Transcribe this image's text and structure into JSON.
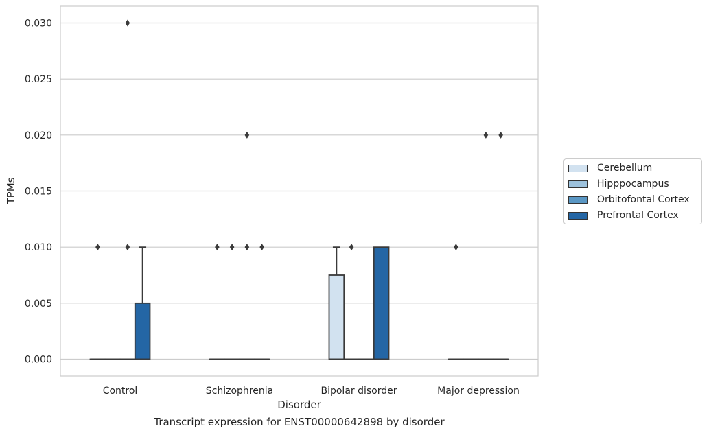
{
  "chart_data": {
    "type": "box",
    "title": "",
    "caption": "Transcript expression for ENST00000642898 by disorder",
    "xlabel": "Disorder",
    "ylabel": "TPMs",
    "ylim": [
      -0.0015,
      0.0315
    ],
    "yticks": [
      "0.000",
      "0.005",
      "0.010",
      "0.015",
      "0.020",
      "0.025",
      "0.030"
    ],
    "grid": "horizontal",
    "legend_position": "right",
    "categories": [
      "Control",
      "Schizophrenia",
      "Bipolar disorder",
      "Major depression"
    ],
    "series": [
      {
        "name": "Cerebellum",
        "color": "#d2e2f0",
        "boxes": [
          {
            "q1": 0,
            "median": 0,
            "q3": 0,
            "whisker_low": 0,
            "whisker_high": 0,
            "outliers": [
              0.01
            ]
          },
          {
            "q1": 0,
            "median": 0,
            "q3": 0,
            "whisker_low": 0,
            "whisker_high": 0,
            "outliers": [
              0.01
            ]
          },
          {
            "q1": 0,
            "median": 0,
            "q3": 0.0075,
            "whisker_low": 0,
            "whisker_high": 0.01,
            "outliers": []
          },
          {
            "q1": 0,
            "median": 0,
            "q3": 0,
            "whisker_low": 0,
            "whisker_high": 0,
            "outliers": [
              0.01
            ]
          }
        ]
      },
      {
        "name": "Hipppocampus",
        "color": "#9dc2dd",
        "boxes": [
          {
            "q1": 0,
            "median": 0,
            "q3": 0,
            "whisker_low": 0,
            "whisker_high": 0,
            "outliers": []
          },
          {
            "q1": 0,
            "median": 0,
            "q3": 0,
            "whisker_low": 0,
            "whisker_high": 0,
            "outliers": [
              0.01
            ]
          },
          {
            "q1": 0,
            "median": 0,
            "q3": 0,
            "whisker_low": 0,
            "whisker_high": 0,
            "outliers": [
              0.01
            ]
          },
          {
            "q1": 0,
            "median": 0,
            "q3": 0,
            "whisker_low": 0,
            "whisker_high": 0,
            "outliers": []
          }
        ]
      },
      {
        "name": "Orbitofontal Cortex",
        "color": "#5a97c4",
        "boxes": [
          {
            "q1": 0,
            "median": 0,
            "q3": 0,
            "whisker_low": 0,
            "whisker_high": 0,
            "outliers": [
              0.01,
              0.03
            ]
          },
          {
            "q1": 0,
            "median": 0,
            "q3": 0,
            "whisker_low": 0,
            "whisker_high": 0,
            "outliers": [
              0.01,
              0.02
            ]
          },
          {
            "q1": 0,
            "median": 0,
            "q3": 0,
            "whisker_low": 0,
            "whisker_high": 0,
            "outliers": []
          },
          {
            "q1": 0,
            "median": 0,
            "q3": 0,
            "whisker_low": 0,
            "whisker_high": 0,
            "outliers": [
              0.02
            ]
          }
        ]
      },
      {
        "name": "Prefrontal Cortex",
        "color": "#2466a5",
        "boxes": [
          {
            "q1": 0,
            "median": 0,
            "q3": 0.005,
            "whisker_low": 0,
            "whisker_high": 0.01,
            "outliers": []
          },
          {
            "q1": 0,
            "median": 0,
            "q3": 0,
            "whisker_low": 0,
            "whisker_high": 0,
            "outliers": [
              0.01
            ]
          },
          {
            "q1": 0,
            "median": 0,
            "q3": 0.01,
            "whisker_low": 0,
            "whisker_high": 0.01,
            "outliers": []
          },
          {
            "q1": 0,
            "median": 0,
            "q3": 0,
            "whisker_low": 0,
            "whisker_high": 0,
            "outliers": [
              0.02
            ]
          }
        ]
      }
    ]
  }
}
